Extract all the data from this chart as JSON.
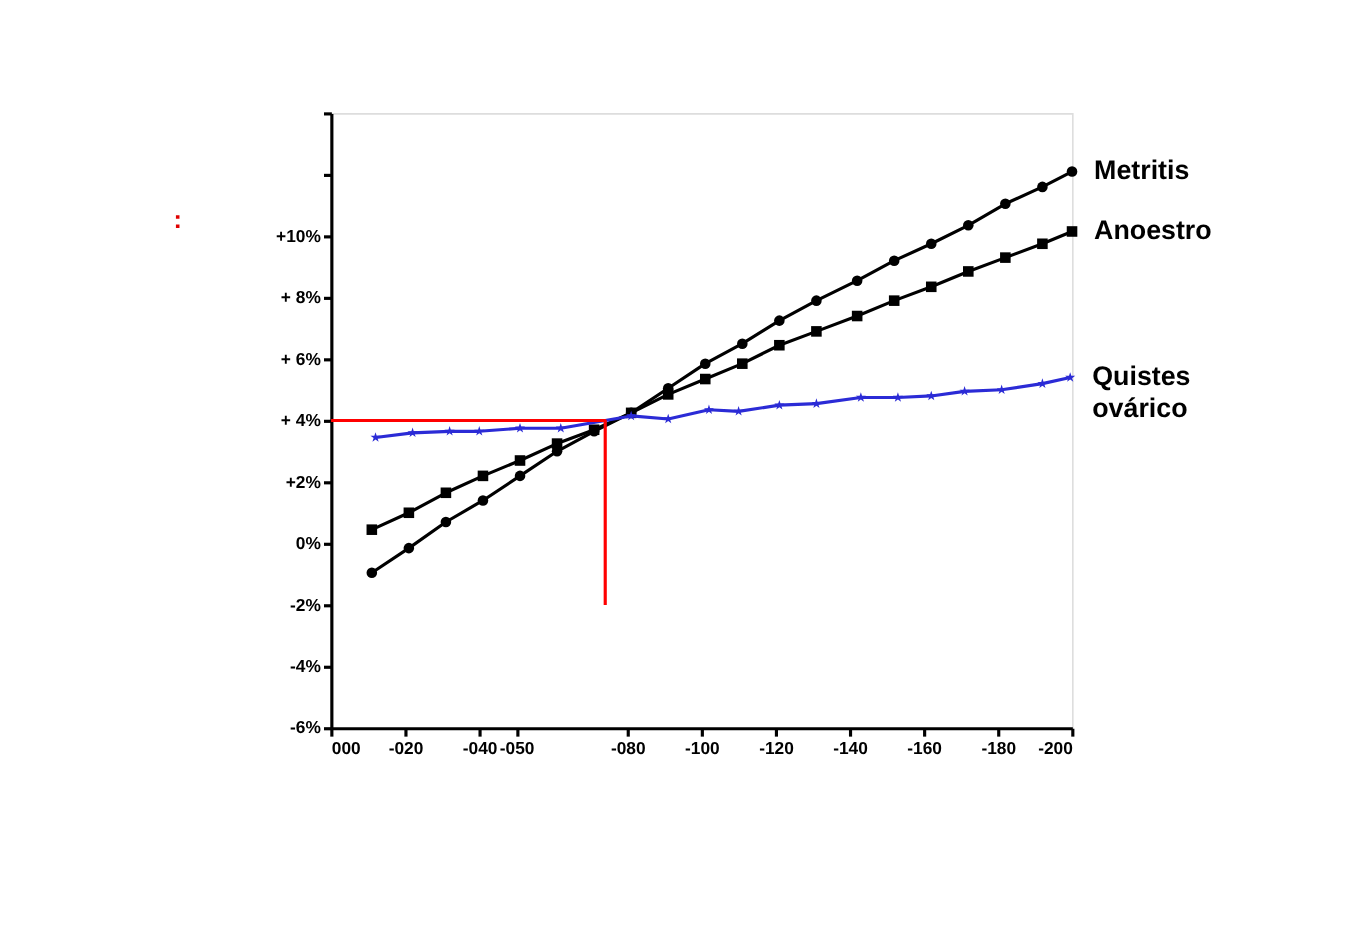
{
  "chart_data": {
    "type": "line",
    "annotations": [
      ":"
    ],
    "xlim": [
      0,
      -200
    ],
    "xticks": [
      {
        "value": 0,
        "label": "000"
      },
      {
        "value": -20,
        "label": "-020"
      },
      {
        "value": -40,
        "label": "-040"
      },
      {
        "value": -50,
        "label": "-050"
      },
      {
        "value": -80,
        "label": "-080"
      },
      {
        "value": -100,
        "label": "-100"
      },
      {
        "value": -120,
        "label": "-120"
      },
      {
        "value": -140,
        "label": "-140"
      },
      {
        "value": -160,
        "label": "-160"
      },
      {
        "value": -180,
        "label": "-180"
      },
      {
        "value": -200,
        "label": "-200"
      }
    ],
    "ylim": [
      -6,
      14
    ],
    "yticks": [
      {
        "value": -6,
        "label": "-6%"
      },
      {
        "value": -4,
        "label": "-4%"
      },
      {
        "value": -2,
        "label": "-2%"
      },
      {
        "value": 0,
        "label": "0%"
      },
      {
        "value": 2,
        "label": "+2%"
      },
      {
        "value": 4,
        "label": "+ 4%"
      },
      {
        "value": 6,
        "label": "+ 6%"
      },
      {
        "value": 8,
        "label": "+ 8%"
      },
      {
        "value": 10,
        "label": "+10%"
      },
      {
        "value": 12,
        "label": null
      },
      {
        "value": 14,
        "label": null
      }
    ],
    "grid": false,
    "legend": false,
    "series": [
      {
        "name": "Metritis",
        "color": "#000000",
        "marker": "circle",
        "x": [
          -11,
          -21,
          -31,
          -41,
          -51,
          -61,
          -71,
          -81,
          -91,
          -101,
          -111,
          -121,
          -131,
          -142,
          -152,
          -162,
          -172,
          -182,
          -192,
          -200
        ],
        "values": [
          -0.95,
          -0.15,
          0.7,
          1.4,
          2.2,
          3.0,
          3.65,
          4.25,
          5.05,
          5.85,
          6.5,
          7.25,
          7.9,
          8.55,
          9.2,
          9.75,
          10.35,
          11.05,
          11.6,
          12.1
        ]
      },
      {
        "name": "Anoestro",
        "color": "#000000",
        "marker": "square",
        "x": [
          -11,
          -21,
          -31,
          -41,
          -51,
          -61,
          -71,
          -81,
          -91,
          -101,
          -111,
          -121,
          -131,
          -142,
          -152,
          -162,
          -172,
          -182,
          -192,
          -200
        ],
        "values": [
          0.45,
          1.0,
          1.65,
          2.2,
          2.7,
          3.25,
          3.7,
          4.25,
          4.85,
          5.35,
          5.85,
          6.45,
          6.9,
          7.4,
          7.9,
          8.35,
          8.85,
          9.3,
          9.75,
          10.15
        ]
      },
      {
        "name": "Quistes\novárico",
        "color": "#2b2bd6",
        "marker": "star",
        "x": [
          -12,
          -22,
          -32,
          -40,
          -51,
          -62,
          -81,
          -91,
          -102,
          -110,
          -121,
          -131,
          -143,
          -153,
          -162,
          -171,
          -181,
          -192,
          -199.5
        ],
        "values": [
          3.45,
          3.6,
          3.65,
          3.65,
          3.75,
          3.75,
          4.15,
          4.05,
          4.35,
          4.3,
          4.5,
          4.55,
          4.75,
          4.75,
          4.8,
          4.95,
          5.0,
          5.2,
          5.4
        ]
      },
      {
        "color": "#ff0000",
        "marker": "none",
        "x": [
          0,
          -74,
          -74
        ],
        "values": [
          4,
          4,
          -2
        ]
      }
    ]
  }
}
